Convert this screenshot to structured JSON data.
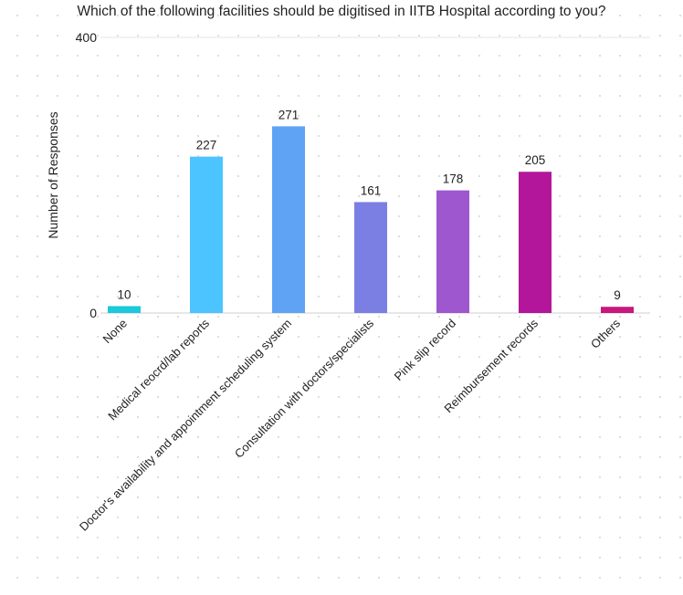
{
  "chart_data": {
    "type": "bar",
    "title": "Which of the following facilities should be digitised in IITB Hospital according to you?",
    "xlabel": "",
    "ylabel": "Number of Responses",
    "ylim": [
      0,
      400
    ],
    "yticks": [
      "0",
      "400"
    ],
    "grid": false,
    "legend": "none",
    "categories": [
      "None",
      "Medical reocrd/lab reports",
      "Doctor's availability and appointment scheduling system",
      "Consultation with doctors/specialists",
      "Pink slip record",
      "Reimbursement records",
      "Others"
    ],
    "values": [
      10,
      227,
      271,
      161,
      178,
      205,
      9
    ],
    "colors": [
      "#1CC8DC",
      "#4CC4FF",
      "#5FA3F5",
      "#7B7FE4",
      "#9E57CF",
      "#B3169A",
      "#C8177E"
    ]
  }
}
